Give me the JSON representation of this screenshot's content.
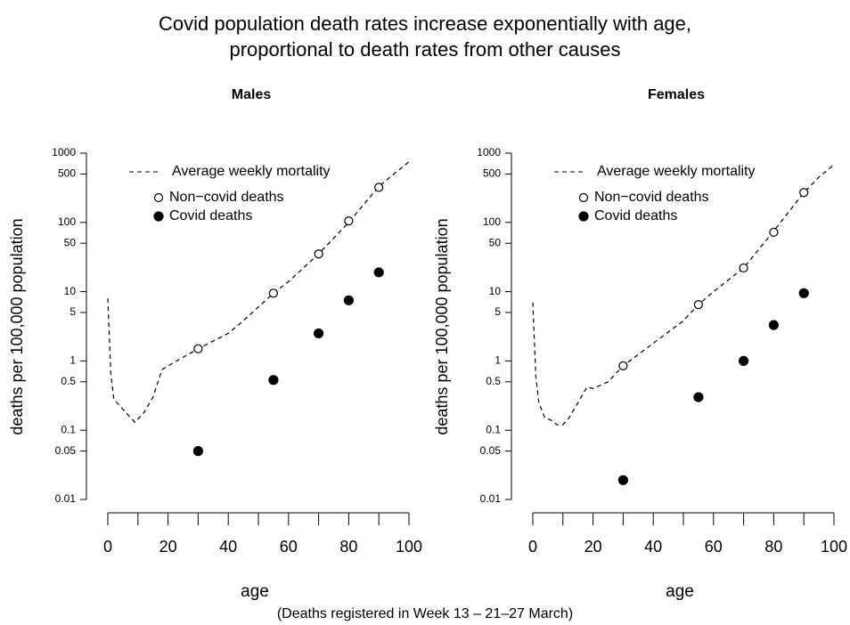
{
  "title": [
    "Covid population death rates increase exponentially with age,",
    "proportional to death rates from other causes"
  ],
  "note": "(Deaths registered in Week 13 – 21–27 March)",
  "chart_data": [
    {
      "type": "line",
      "title": "Males",
      "xlabel": "age",
      "ylabel": "deaths per 100,000 population",
      "xlim": [
        0,
        100
      ],
      "ylim": [
        0.01,
        1000
      ],
      "ylog": true,
      "legend": "top-left",
      "xticks": [
        0,
        20,
        40,
        60,
        80,
        100
      ],
      "xticks_minor": [
        10,
        30,
        50,
        70,
        90
      ],
      "yticks": [
        0.01,
        0.05,
        0.1,
        0.5,
        1,
        5,
        10,
        50,
        100,
        500,
        1000
      ],
      "series": [
        {
          "name": "Average weekly mortality",
          "color": "#000000",
          "marker": "dashed",
          "x": [
            0,
            1,
            2,
            5,
            9,
            12,
            15,
            18,
            22,
            30,
            40,
            45,
            55,
            60,
            70,
            80,
            90,
            95,
            100
          ],
          "values": [
            8,
            0.65,
            0.28,
            0.2,
            0.13,
            0.18,
            0.3,
            0.75,
            0.95,
            1.5,
            2.5,
            3.8,
            9.5,
            14,
            35,
            100,
            330,
            500,
            750
          ]
        },
        {
          "name": "Non−covid deaths",
          "color": "#000000",
          "marker": "open",
          "x": [
            30,
            55,
            70,
            80,
            90
          ],
          "values": [
            1.5,
            9.5,
            35,
            105,
            320
          ]
        },
        {
          "name": "Covid deaths",
          "color": "#000000",
          "marker": "filled",
          "x": [
            30,
            55,
            70,
            80,
            90
          ],
          "values": [
            0.05,
            0.53,
            2.5,
            7.5,
            19
          ]
        }
      ]
    },
    {
      "type": "line",
      "title": "Females",
      "xlabel": "age",
      "ylabel": "deaths per 100,000 population",
      "xlim": [
        0,
        100
      ],
      "ylim": [
        0.01,
        1000
      ],
      "ylog": true,
      "legend": "top-left",
      "xticks": [
        0,
        20,
        40,
        60,
        80,
        100
      ],
      "xticks_minor": [
        10,
        30,
        50,
        70,
        90
      ],
      "yticks": [
        0.01,
        0.05,
        0.1,
        0.5,
        1,
        5,
        10,
        50,
        100,
        500,
        1000
      ],
      "series": [
        {
          "name": "Average weekly mortality",
          "color": "#000000",
          "marker": "dashed",
          "x": [
            0,
            1,
            2,
            4,
            6,
            8,
            10,
            12,
            15,
            18,
            20,
            25,
            30,
            40,
            50,
            55,
            60,
            70,
            80,
            90,
            95,
            100
          ],
          "values": [
            7,
            0.6,
            0.25,
            0.15,
            0.14,
            0.12,
            0.12,
            0.15,
            0.25,
            0.42,
            0.4,
            0.5,
            0.85,
            1.8,
            3.8,
            6.5,
            10,
            22,
            75,
            270,
            450,
            680
          ]
        },
        {
          "name": "Non−covid deaths",
          "color": "#000000",
          "marker": "open",
          "x": [
            30,
            55,
            70,
            80,
            90
          ],
          "values": [
            0.85,
            6.5,
            22,
            72,
            270
          ]
        },
        {
          "name": "Covid deaths",
          "color": "#000000",
          "marker": "filled",
          "x": [
            30,
            55,
            70,
            80,
            90
          ],
          "values": [
            0.019,
            0.3,
            1,
            3.3,
            9.5
          ]
        }
      ]
    }
  ]
}
